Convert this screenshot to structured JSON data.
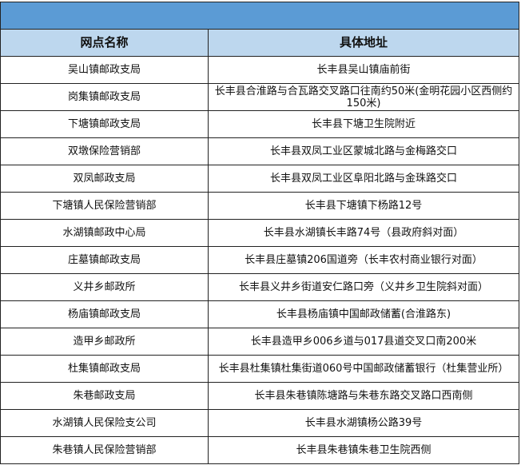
{
  "header": {
    "col_name": "网点名称",
    "col_address": "具体地址"
  },
  "colors": {
    "banner": "#5b9bd5",
    "header_bg": "#bdd7ee"
  },
  "rows": [
    {
      "name": "吴山镇邮政支局",
      "address": "长丰县吴山镇庙前街"
    },
    {
      "name": "岗集镇邮政支局",
      "address": "长丰县合淮路与合瓦路交叉路口往南约50米(金明花园小区西侧约150米)"
    },
    {
      "name": "下塘镇邮政支局",
      "address": "长丰县下塘卫生院附近"
    },
    {
      "name": "双墩保险营销部",
      "address": "长丰县双凤工业区蒙城北路与金梅路交口"
    },
    {
      "name": "双凤邮政支局",
      "address": "长丰县双凤工业区阜阳北路与金珠路交口"
    },
    {
      "name": "下塘镇人民保险营销部",
      "address": "长丰县下塘镇下杨路12号"
    },
    {
      "name": "水湖镇邮政中心局",
      "address": "长丰县水湖镇长丰路74号（县政府斜对面）"
    },
    {
      "name": "庄墓镇邮政支局",
      "address": "长丰县庄墓镇206国道旁（长丰农村商业银行对面）"
    },
    {
      "name": "义井乡邮政所",
      "address": "长丰县义井乡街道安仁路口旁（义井乡卫生院斜对面）"
    },
    {
      "name": "杨庙镇邮政支局",
      "address": "长丰县杨庙镇中国邮政储蓄(合淮路东)"
    },
    {
      "name": "造甲乡邮政所",
      "address": "长丰县造甲乡006乡道与017县道交叉口南200米"
    },
    {
      "name": "杜集镇邮政支局",
      "address": "长丰县杜集镇杜集街道060号中国邮政储蓄银行（杜集营业所）"
    },
    {
      "name": "朱巷邮政支局",
      "address": "长丰县朱巷镇陈塘路与朱巷东路交叉路口西南侧"
    },
    {
      "name": "水湖镇人民保险支公司",
      "address": "长丰县水湖镇杨公路39号"
    },
    {
      "name": "朱巷镇人民保险营销部",
      "address": "长丰县朱巷镇朱巷卫生院西侧"
    }
  ]
}
